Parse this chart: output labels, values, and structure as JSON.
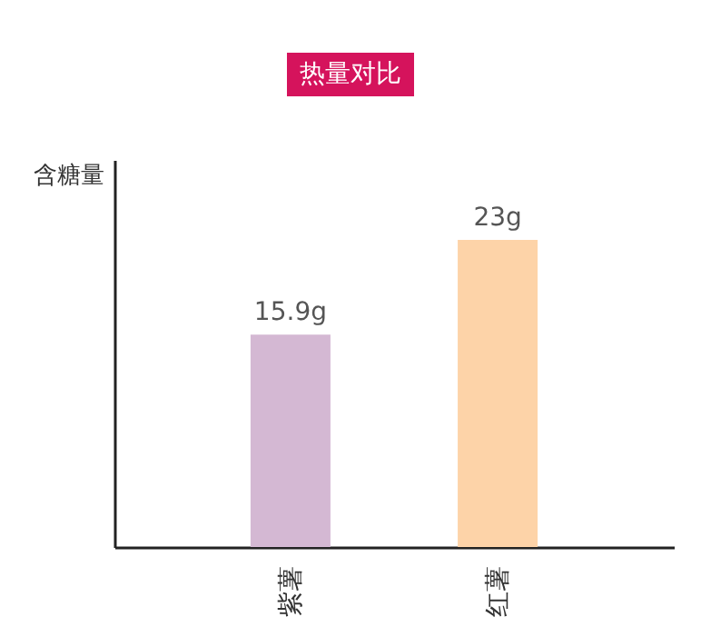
{
  "chart_data": {
    "type": "bar",
    "title": "热量对比",
    "ylabel": "含糖量",
    "categories": [
      "紫薯",
      "红薯"
    ],
    "values": [
      15.9,
      23
    ],
    "colors": [
      "#d4b8d3",
      "#fdd3a8"
    ],
    "value_labels": [
      "15.9g",
      "23g"
    ]
  }
}
